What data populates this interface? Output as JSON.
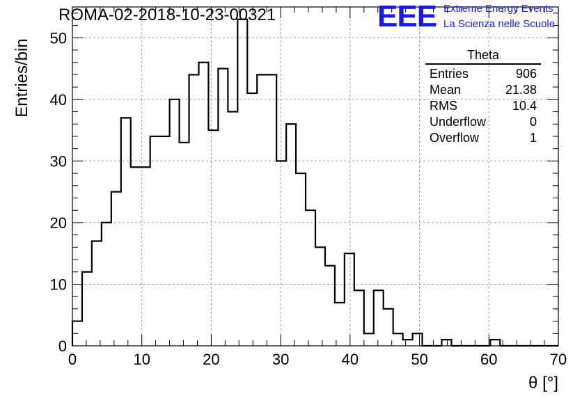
{
  "header": {
    "run_title": "ROMA-02-2018-10-23-00321",
    "logo_text": "EEE",
    "brand_line1": "Extreme Energy Events",
    "brand_line2": "La Scienza nelle Scuole",
    "brand_color": "#1a1ae6"
  },
  "stats": {
    "title": "Theta",
    "rows": [
      {
        "label": "Entries",
        "value": "906"
      },
      {
        "label": "Mean",
        "value": "21.38"
      },
      {
        "label": "RMS",
        "value": "10.4"
      },
      {
        "label": "Underflow",
        "value": "0"
      },
      {
        "label": "Overflow",
        "value": "1"
      }
    ]
  },
  "chart_data": {
    "type": "histogram",
    "xlabel": "θ [°]",
    "ylabel": "Entries/bin",
    "xlim": [
      0,
      70
    ],
    "ylim": [
      0,
      55
    ],
    "bin_width": 1.4,
    "x_ticks": [
      "0",
      "10",
      "20",
      "30",
      "40",
      "50",
      "60",
      "70"
    ],
    "y_ticks": [
      "0",
      "10",
      "20",
      "30",
      "40",
      "50"
    ],
    "grid": true,
    "values": [
      4,
      12,
      17,
      20,
      25,
      37,
      29,
      29,
      34,
      34,
      40,
      33,
      44,
      46,
      35,
      45,
      38,
      53,
      41,
      44,
      44,
      30,
      36,
      28,
      22,
      16,
      13,
      7,
      15,
      9,
      2,
      9,
      6,
      2,
      1,
      2,
      0,
      0,
      1,
      0,
      0,
      0,
      0,
      1,
      0,
      0,
      0,
      0,
      0,
      0
    ]
  }
}
